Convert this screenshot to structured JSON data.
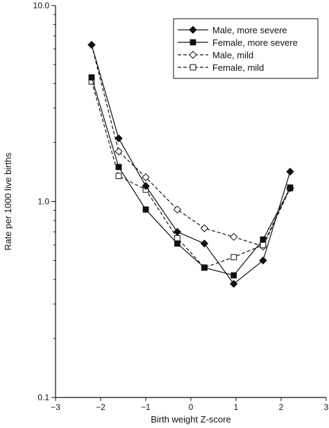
{
  "chart_data": {
    "type": "line",
    "title": "",
    "xlabel": "Birth weight Z-score",
    "ylabel": "Rate per 1000 live births",
    "xlim": [
      -3,
      3
    ],
    "ylim": [
      0.1,
      10.0
    ],
    "yscale": "log",
    "grid": false,
    "legend_position": "top-right",
    "x_ticks": [
      "−3",
      "−2",
      "−1",
      "0",
      "1",
      "2",
      "3"
    ],
    "y_ticks": [
      "0.1",
      "1.0",
      "10.0"
    ],
    "series": [
      {
        "name": "Male, more severe",
        "line": "solid",
        "marker": "diamond",
        "filled": true,
        "x": [
          -2.2,
          -1.6,
          -1.0,
          -0.3,
          0.3,
          0.95,
          1.6,
          2.2
        ],
        "y": [
          6.3,
          2.1,
          1.2,
          0.7,
          0.61,
          0.38,
          0.5,
          1.42
        ]
      },
      {
        "name": "Female, more severe",
        "line": "solid",
        "marker": "square",
        "filled": true,
        "x": [
          -2.2,
          -1.6,
          -1.0,
          -0.3,
          0.3,
          0.95,
          1.6,
          2.2
        ],
        "y": [
          4.3,
          1.5,
          0.91,
          0.61,
          0.46,
          0.42,
          0.64,
          1.17
        ]
      },
      {
        "name": "Male, mild",
        "line": "dashed",
        "marker": "diamond",
        "filled": false,
        "x": [
          -2.2,
          -1.6,
          -1.0,
          -0.3,
          0.3,
          0.95,
          1.6,
          2.2
        ],
        "y": [
          6.3,
          1.8,
          1.33,
          0.91,
          0.73,
          0.66,
          0.59,
          1.17
        ]
      },
      {
        "name": "Female, mild",
        "line": "dashed",
        "marker": "square",
        "filled": false,
        "x": [
          -2.2,
          -1.6,
          -1.0,
          -0.3,
          0.3,
          0.95,
          1.6,
          2.2
        ],
        "y": [
          4.1,
          1.35,
          1.15,
          0.65,
          0.46,
          0.52,
          0.6,
          1.18
        ]
      }
    ]
  }
}
